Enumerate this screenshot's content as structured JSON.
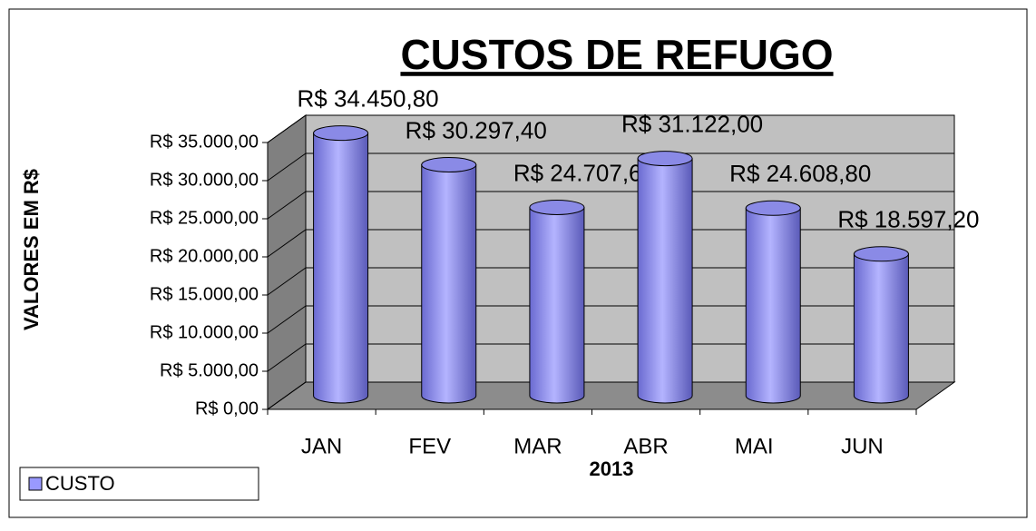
{
  "chart_data": {
    "type": "bar3d",
    "title": "CUSTOS DE REFUGO",
    "y_label": "VALORES EM R$",
    "x_label": "2013",
    "categories": [
      "JAN",
      "FEV",
      "MAR",
      "ABR",
      "MAI",
      "JUN"
    ],
    "series": [
      {
        "name": "CUSTO",
        "color": "#9999ff",
        "values": [
          34450.8,
          30297.4,
          24707.6,
          31122.0,
          24608.8,
          18597.2
        ],
        "value_labels": [
          "R$ 34.450,80",
          "R$ 30.297,40",
          "R$ 24.707,60",
          "R$ 31.122,00",
          "R$ 24.608,80",
          "R$ 18.597,20"
        ]
      }
    ],
    "ylim": [
      0,
      35000
    ],
    "yticks": [
      {
        "value": 0,
        "label": "R$ 0,00"
      },
      {
        "value": 5000,
        "label": "R$ 5.000,00"
      },
      {
        "value": 10000,
        "label": "R$ 10.000,00"
      },
      {
        "value": 15000,
        "label": "R$ 15.000,00"
      },
      {
        "value": 20000,
        "label": "R$ 20.000,00"
      },
      {
        "value": 25000,
        "label": "R$ 25.000,00"
      },
      {
        "value": 30000,
        "label": "R$ 30.000,00"
      },
      {
        "value": 35000,
        "label": "R$ 35.000,00"
      }
    ],
    "grid": true,
    "legend": "bottom-left"
  }
}
